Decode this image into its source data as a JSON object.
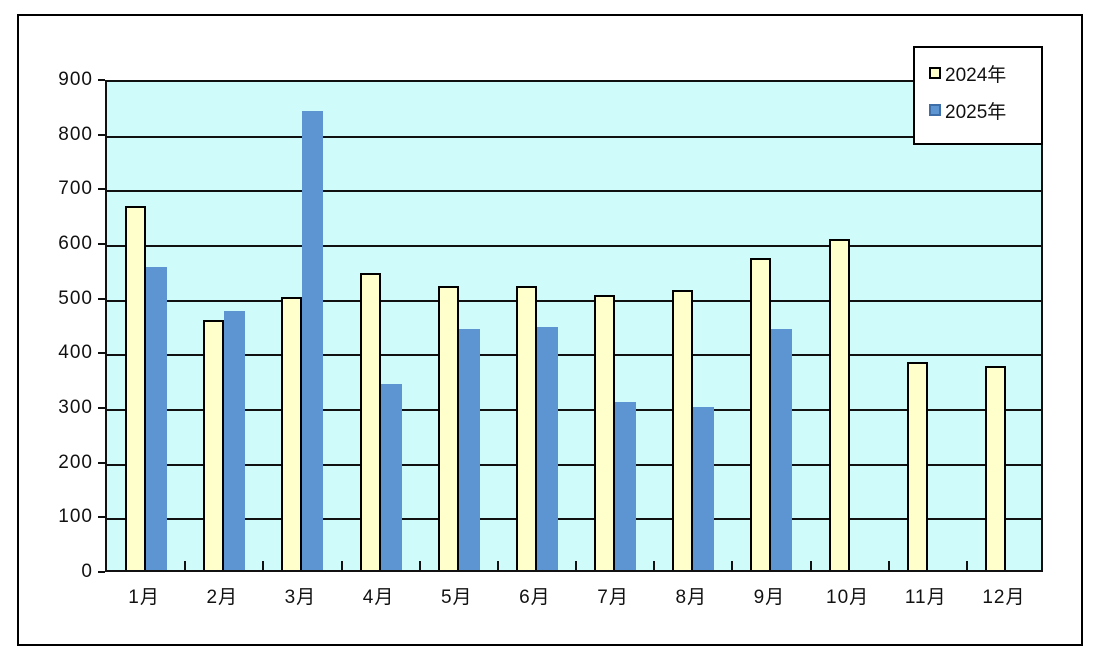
{
  "page": {
    "background_color": "#ffffff",
    "frame_border_color": "#000000"
  },
  "chart_data": {
    "type": "bar",
    "title": "",
    "categories": [
      "1月",
      "2月",
      "3月",
      "4月",
      "5月",
      "6月",
      "7月",
      "8月",
      "9月",
      "10月",
      "11月",
      "12月"
    ],
    "series": [
      {
        "name": "2024年",
        "color": "#FFFFCC",
        "border_color": "#000000",
        "values": [
          665,
          458,
          500,
          543,
          520,
          520,
          503,
          512,
          570,
          605,
          380,
          373
        ]
      },
      {
        "name": "2025年",
        "color": "#5D95D3",
        "border_color": "#3E6FA8",
        "values": [
          555,
          473,
          840,
          340,
          440,
          445,
          307,
          298,
          440,
          null,
          null,
          null
        ]
      }
    ],
    "xlabel": "",
    "ylabel": "",
    "ylim": [
      0,
      900
    ],
    "ytick_step": 100,
    "ytick_labels": [
      "0",
      "100",
      "200",
      "300",
      "400",
      "500",
      "600",
      "700",
      "800",
      "900"
    ],
    "grid": true,
    "gridline_color": "#111111",
    "plot_bg": "#CFFBFA",
    "legend_position": "top-right"
  }
}
